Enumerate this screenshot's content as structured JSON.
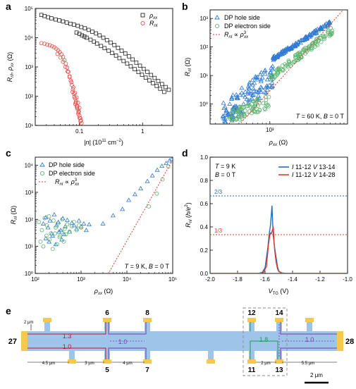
{
  "panels": {
    "a": "a",
    "b": "b",
    "c": "c",
    "d": "d",
    "e": "e"
  },
  "colors": {
    "black": "#222222",
    "red": "#e8504a",
    "blue": "#2f79d6",
    "green": "#5db56f",
    "dotted_red": "#e03a2f",
    "dotted_blue": "#1f6fb8",
    "channel": "#9ec5e9",
    "gold": "#f6c94a",
    "bar_red": "#c8102e",
    "bar_purple": "#7a3cb0"
  },
  "chart_data": [
    {
      "panel": "a",
      "type": "scatter",
      "xlabel": "|n| (10¹¹ cm⁻²)",
      "ylabel": "R_nl, ρ_xx (Ω)",
      "xscale": "log",
      "yscale": "log",
      "xlim": [
        0.02,
        3.0
      ],
      "ylim": [
        10,
        100000
      ],
      "xticks": [
        {
          "v": 0.1,
          "label": "0.1"
        },
        {
          "v": 1,
          "label": "1"
        }
      ],
      "yticks": [
        {
          "v": 10,
          "label": "10¹"
        },
        {
          "v": 100,
          "label": "10²"
        },
        {
          "v": 1000,
          "label": "10³"
        },
        {
          "v": 10000,
          "label": "10⁴"
        },
        {
          "v": 100000,
          "label": "10⁵"
        }
      ],
      "legend": [
        "ρ_xx",
        "R_nl"
      ],
      "series": [
        {
          "name": "ρ_xx",
          "marker": "square",
          "color": "#222222",
          "x": [
            0.025,
            0.028,
            0.032,
            0.036,
            0.042,
            0.048,
            0.055,
            0.063,
            0.072,
            0.082,
            0.094,
            0.107,
            0.122,
            0.14,
            0.16,
            0.183,
            0.209,
            0.239,
            0.273,
            0.312,
            0.357,
            0.408,
            0.466,
            0.533,
            0.609,
            0.696,
            0.796,
            0.91,
            1.04,
            1.19,
            1.36,
            1.55,
            1.77,
            2.03,
            2.32,
            2.6,
            0.09,
            0.1,
            0.11,
            0.12,
            0.13,
            0.15,
            0.17,
            0.19,
            0.22,
            0.25,
            0.29,
            0.33,
            0.38,
            0.43,
            0.5,
            0.57,
            0.65,
            0.75,
            0.86,
            0.98,
            1.12,
            1.28,
            1.46,
            1.67,
            1.9,
            2.2
          ],
          "y": [
            60000,
            55000,
            50000,
            46000,
            42000,
            39000,
            36000,
            33000,
            30000,
            28000,
            25500,
            23000,
            21000,
            18500,
            16000,
            14000,
            12000,
            10000,
            8300,
            6800,
            5600,
            4500,
            3600,
            2900,
            2300,
            1800,
            1400,
            1100,
            860,
            680,
            530,
            420,
            330,
            260,
            205,
            165,
            15000,
            13500,
            12000,
            11000,
            10000,
            8500,
            7300,
            6300,
            5200,
            4400,
            3600,
            3000,
            2450,
            2000,
            1600,
            1300,
            1050,
            840,
            670,
            540,
            430,
            345,
            280,
            225,
            180,
            140
          ]
        },
        {
          "name": "R_nl",
          "marker": "circle",
          "color": "#e8504a",
          "x": [
            0.025,
            0.028,
            0.031,
            0.034,
            0.037,
            0.04,
            0.043,
            0.046,
            0.049,
            0.052,
            0.055,
            0.058,
            0.061,
            0.064,
            0.067,
            0.07,
            0.073,
            0.076,
            0.079,
            0.082,
            0.085,
            0.088,
            0.091,
            0.094,
            0.097,
            0.1,
            0.103,
            0.106,
            0.045,
            0.05,
            0.055,
            0.06,
            0.065,
            0.07,
            0.075,
            0.08,
            0.085,
            0.09,
            0.095,
            0.1,
            0.078,
            0.083,
            0.088,
            0.093,
            0.098,
            0.086,
            0.092,
            0.096,
            0.101,
            0.104,
            0.108
          ],
          "y": [
            6500,
            6200,
            5800,
            5500,
            5100,
            4700,
            4200,
            3700,
            3200,
            2700,
            2200,
            1700,
            1300,
            950,
            680,
            480,
            340,
            240,
            170,
            120,
            85,
            60,
            45,
            35,
            28,
            22,
            18,
            15,
            2800,
            2100,
            1500,
            1000,
            700,
            450,
            300,
            200,
            130,
            90,
            60,
            40,
            140,
            95,
            65,
            45,
            30,
            55,
            40,
            25,
            18,
            14,
            12
          ]
        }
      ]
    },
    {
      "panel": "b",
      "type": "scatter",
      "xlabel": "ρ_xx (Ω)",
      "ylabel": "R_nl (Ω)",
      "xscale": "log",
      "yscale": "log",
      "xlim": [
        170,
        10000
      ],
      "ylim": [
        0.2,
        2000
      ],
      "xticks": [
        {
          "v": 1000,
          "label": "10³"
        }
      ],
      "yticks": [
        {
          "v": 1,
          "label": "10⁰"
        },
        {
          "v": 10,
          "label": "10¹"
        },
        {
          "v": 100,
          "label": "10²"
        },
        {
          "v": 1000,
          "label": "10³"
        }
      ],
      "annotation": "T = 60 K, B = 0 T",
      "legend": [
        "DP hole side",
        "DP electron side",
        "R_nl ∝ ρ_xx³"
      ],
      "fit": {
        "name": "R_nl ∝ ρ_xx³",
        "k": 2.9e-09,
        "power": 3
      },
      "series": [
        {
          "name": "DP hole side",
          "marker": "triangle",
          "color": "#2f79d6",
          "kind": "hole"
        },
        {
          "name": "DP electron side",
          "marker": "circle",
          "color": "#5db56f",
          "kind": "electron"
        }
      ]
    },
    {
      "panel": "c",
      "type": "scatter",
      "xlabel": "ρ_xx (Ω)",
      "ylabel": "R_nl (Ω)",
      "xscale": "log",
      "yscale": "log",
      "xlim": [
        100,
        100000
      ],
      "ylim": [
        1,
        20000
      ],
      "xticks": [
        {
          "v": 100,
          "label": "10²"
        },
        {
          "v": 1000,
          "label": "10³"
        },
        {
          "v": 10000,
          "label": "10⁴"
        },
        {
          "v": 100000,
          "label": "10⁵"
        }
      ],
      "yticks": [
        {
          "v": 1,
          "label": "10⁰"
        },
        {
          "v": 10,
          "label": "10¹"
        },
        {
          "v": 100,
          "label": "10²"
        },
        {
          "v": 1000,
          "label": "10³"
        },
        {
          "v": 10000,
          "label": "10⁴"
        }
      ],
      "annotation": "T = 9 K, B = 0 T",
      "legend": [
        "DP hole side",
        "DP electron side",
        "R_nl ∝ ρ_xx³"
      ],
      "fit": {
        "name": "R_nl ∝ ρ_xx³",
        "k": 1.6e-11,
        "power": 3
      },
      "series": [
        {
          "name": "DP hole side",
          "marker": "triangle",
          "color": "#2f79d6",
          "x": [
            150,
            170,
            190,
            210,
            230,
            260,
            290,
            320,
            360,
            400,
            450,
            500,
            560,
            630,
            700,
            800,
            900,
            1000,
            1150,
            1300,
            1500,
            170,
            200,
            240,
            280,
            330,
            380,
            430,
            3000,
            5000,
            8000,
            11000,
            15000,
            20000,
            28000,
            36000,
            46000,
            58000,
            72000,
            85000,
            95000
          ],
          "y": [
            70,
            120,
            50,
            90,
            30,
            150,
            60,
            80,
            40,
            110,
            55,
            95,
            35,
            75,
            60,
            45,
            90,
            55,
            70,
            40,
            65,
            20,
            15,
            25,
            12,
            35,
            18,
            28,
            70,
            140,
            240,
            520,
            850,
            1400,
            2600,
            4200,
            6800,
            9500,
            12000,
            15000,
            17000
          ]
        },
        {
          "name": "DP electron side",
          "marker": "circle",
          "color": "#5db56f",
          "x": [
            120,
            140,
            160,
            180,
            200,
            220,
            250,
            280,
            310,
            350,
            390,
            440,
            500,
            560,
            630,
            700,
            800,
            900,
            1000,
            130,
            150,
            175,
            205,
            240,
            270,
            300,
            340,
            380,
            420,
            470,
            30000,
            45000,
            60000,
            80000
          ],
          "y": [
            80,
            40,
            110,
            60,
            130,
            30,
            90,
            50,
            70,
            25,
            100,
            45,
            65,
            35,
            55,
            80,
            40,
            60,
            50,
            15,
            10,
            25,
            18,
            8,
            30,
            12,
            22,
            35,
            15,
            28,
            300,
            900,
            3000,
            9000
          ]
        }
      ]
    },
    {
      "panel": "d",
      "type": "line",
      "xlabel": "V_TG (V)",
      "ylabel": "R_nl (h/e²)",
      "xlim": [
        -2.0,
        -1.0
      ],
      "ylim": [
        0,
        1.0
      ],
      "xticks": [
        {
          "v": -2.0,
          "label": "-2.0"
        },
        {
          "v": -1.8,
          "label": "-1.8"
        },
        {
          "v": -1.6,
          "label": "-1.6"
        },
        {
          "v": -1.4,
          "label": "-1.4"
        },
        {
          "v": -1.2,
          "label": "-1.2"
        },
        {
          "v": -1.0,
          "label": "-1.0"
        }
      ],
      "yticks": [
        {
          "v": 0,
          "label": "0.0"
        },
        {
          "v": 0.2,
          "label": "0.2"
        },
        {
          "v": 0.4,
          "label": "0.4"
        },
        {
          "v": 0.6,
          "label": "0.6"
        },
        {
          "v": 0.8,
          "label": "0.8"
        },
        {
          "v": 1.0,
          "label": "1.0"
        }
      ],
      "annotation": [
        "T = 9 K",
        "B = 0 T"
      ],
      "reference_lines": [
        {
          "y": 0.6667,
          "label": "2/3",
          "color": "#1f6fb8"
        },
        {
          "y": 0.3333,
          "label": "1/3",
          "color": "#e03a2f"
        }
      ],
      "legend": [
        "I 11-12 V 13-14",
        "I 11-12 V 14-28"
      ],
      "series": [
        {
          "name": "I 11-12 V 13-14",
          "color": "#1f6fb8",
          "x": [
            -2.0,
            -1.65,
            -1.62,
            -1.6,
            -1.58,
            -1.57,
            -1.56,
            -1.555,
            -1.55,
            -1.545,
            -1.54,
            -1.53,
            -1.52,
            -1.51,
            -1.5,
            -1.48,
            -1.45,
            -1.0
          ],
          "y": [
            0,
            0,
            0.01,
            0.05,
            0.22,
            0.34,
            0.42,
            0.5,
            0.58,
            0.45,
            0.32,
            0.22,
            0.14,
            0.06,
            0.02,
            0.005,
            0,
            0
          ]
        },
        {
          "name": "I 11-12 V 14-28",
          "color": "#e03a2f",
          "x": [
            -2.0,
            -1.64,
            -1.61,
            -1.59,
            -1.575,
            -1.565,
            -1.56,
            -1.555,
            -1.55,
            -1.545,
            -1.54,
            -1.535,
            -1.53,
            -1.52,
            -1.51,
            -1.5,
            -1.47,
            -1.0
          ],
          "y": [
            0,
            0,
            0.01,
            0.06,
            0.25,
            0.33,
            0.35,
            0.34,
            0.36,
            0.38,
            0.4,
            0.28,
            0.2,
            0.1,
            0.04,
            0.015,
            0,
            0
          ]
        }
      ]
    }
  ],
  "device": {
    "contacts": {
      "left": "27",
      "right": "28",
      "top": [
        "6",
        "8",
        "12",
        "14"
      ],
      "bottom": [
        "5",
        "7",
        "11",
        "13"
      ]
    },
    "region_values": [
      {
        "text": "1.3",
        "color": "#c8102e"
      },
      {
        "text": "1.0",
        "color": "#c8102e"
      },
      {
        "text": "1.0",
        "color": "#7a3cb0"
      },
      {
        "text": "1.8",
        "color": "#1a9e4b"
      },
      {
        "text": "1.0",
        "color": "#7a3cb0"
      }
    ],
    "dims": [
      "2 μm",
      "4.5 μm",
      "3 μm",
      "4 μm",
      "2 μm",
      "5.5 μm"
    ],
    "scalebar": "2 μm"
  }
}
